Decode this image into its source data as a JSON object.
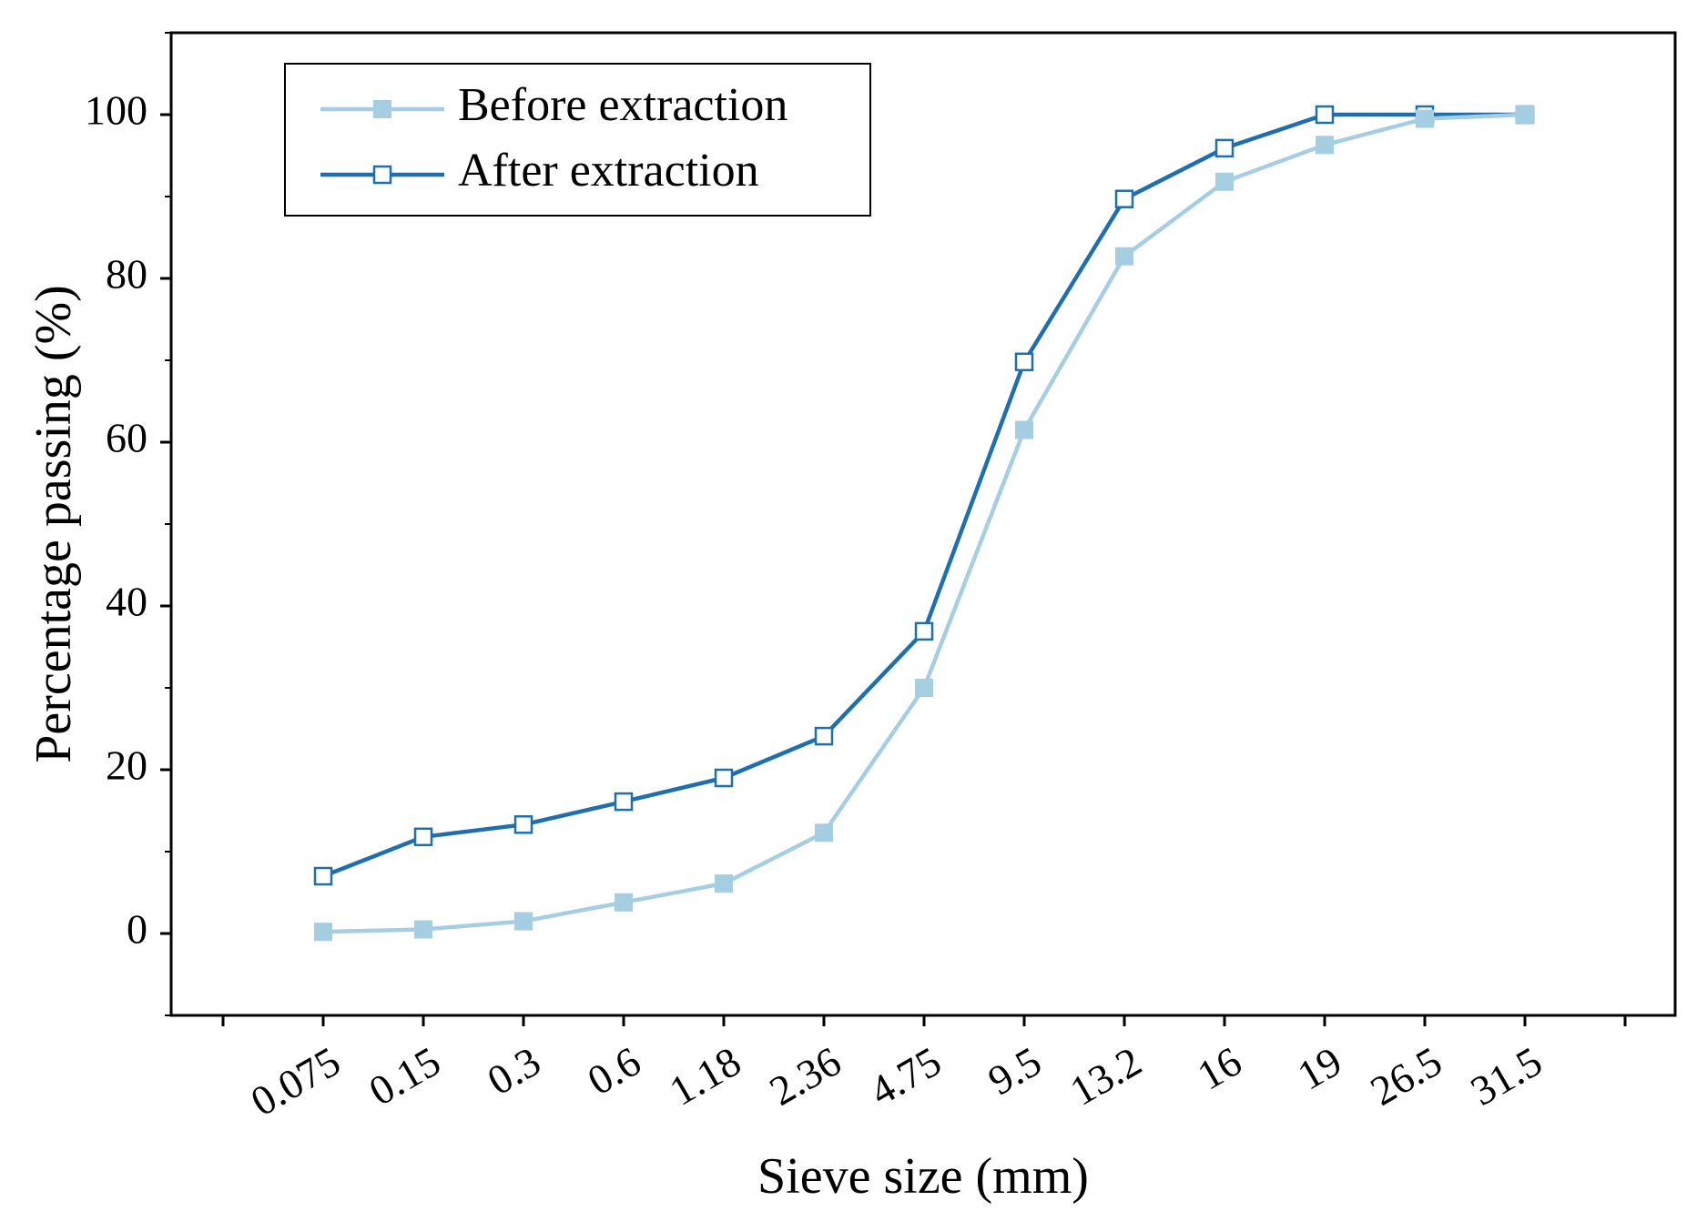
{
  "chart_data": {
    "type": "line",
    "xlabel": "Sieve size (mm)",
    "ylabel": "Percentage passing (%)",
    "categories": [
      "0.075",
      "0.15",
      "0.3",
      "0.6",
      "1.18",
      "2.36",
      "4.75",
      "9.5",
      "13.2",
      "16",
      "19",
      "26.5",
      "31.5"
    ],
    "ylim": [
      -10,
      110
    ],
    "yticks": [
      0,
      20,
      40,
      60,
      80,
      100
    ],
    "legend_position": "top-left",
    "grid": false,
    "series": [
      {
        "name": "Before extraction",
        "color": "#a6cee3",
        "marker": "filled-square",
        "values": [
          0.2,
          0.5,
          1.5,
          3.8,
          6.1,
          12.3,
          30.0,
          61.5,
          82.7,
          91.8,
          96.3,
          99.5,
          100
        ]
      },
      {
        "name": "After extraction",
        "color": "#1f6fae",
        "marker": "open-square",
        "values": [
          7.0,
          11.8,
          13.3,
          16.1,
          19.0,
          24.1,
          36.9,
          69.8,
          89.7,
          95.9,
          100,
          100,
          100
        ]
      }
    ]
  }
}
